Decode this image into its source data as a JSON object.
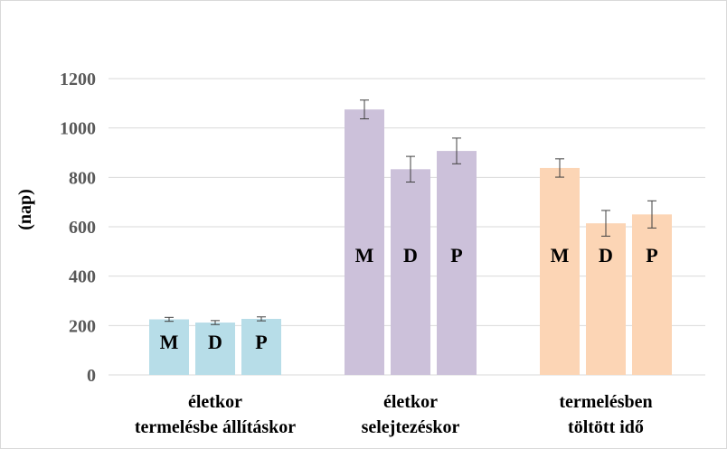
{
  "chart_data": {
    "type": "bar",
    "title": "",
    "xlabel": "",
    "ylabel": "(nap)",
    "ylim": [
      0,
      1200
    ],
    "yticks": [
      0,
      200,
      400,
      600,
      800,
      1000,
      1200
    ],
    "grid": "horizontal",
    "categories": [
      {
        "lines": [
          "életkor",
          "termelésbe állításkor"
        ],
        "color": "#b7dde8"
      },
      {
        "lines": [
          "életkor",
          "selejtezéskor"
        ],
        "color": "#ccc1da"
      },
      {
        "lines": [
          "termelésben",
          "töltött idő"
        ],
        "color": "#fcd5b5"
      }
    ],
    "series": [
      {
        "label": "M",
        "values": [
          225,
          1075,
          838
        ],
        "errors": [
          8,
          38,
          37
        ]
      },
      {
        "label": "D",
        "values": [
          212,
          833,
          614
        ],
        "errors": [
          8,
          52,
          52
        ]
      },
      {
        "label": "P",
        "values": [
          227,
          907,
          650
        ],
        "errors": [
          8,
          52,
          55
        ]
      }
    ]
  }
}
